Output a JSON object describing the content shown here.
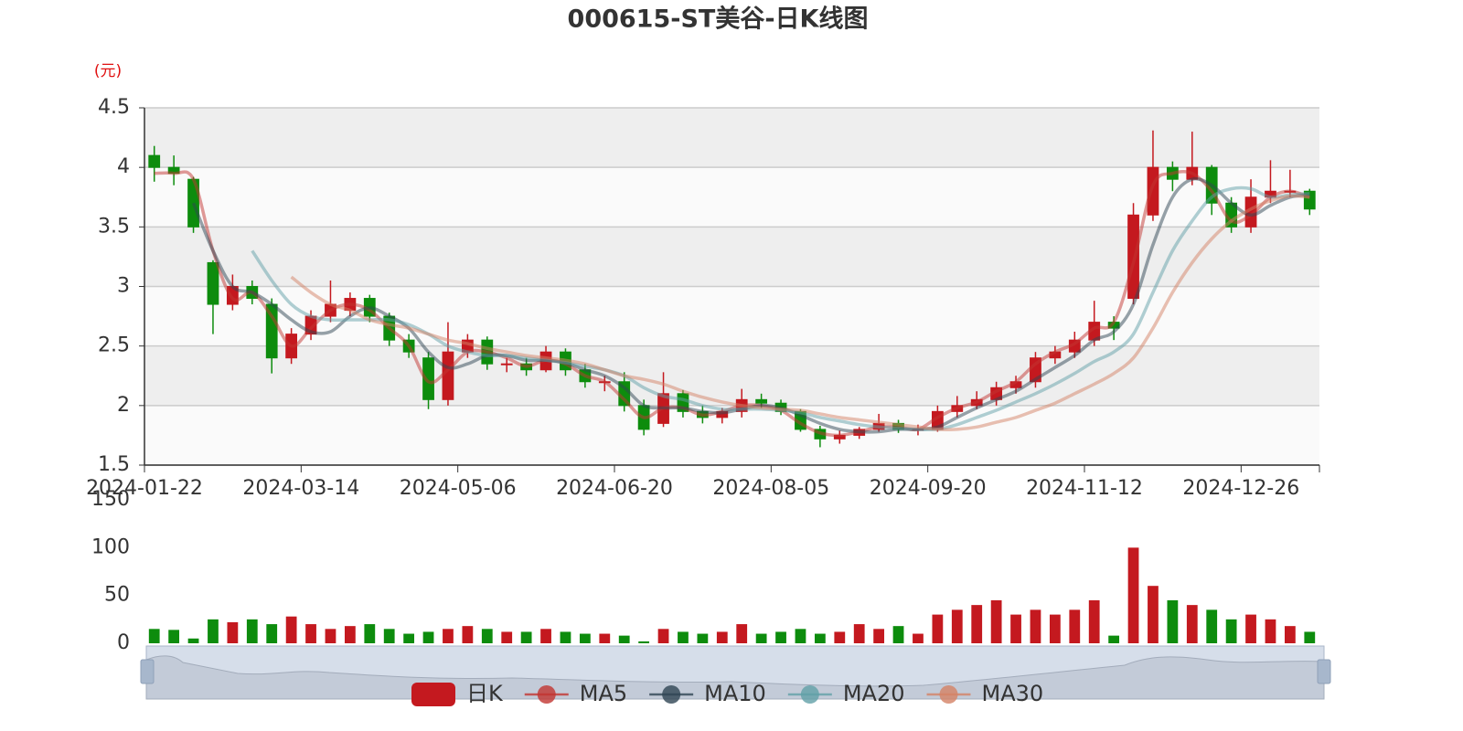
{
  "chart_data": {
    "type": "candlestick",
    "title": "000615-ST美谷-日K线图",
    "y_label": "(元)",
    "categories": [
      "2024-01-22",
      null,
      null,
      null,
      null,
      null,
      null,
      null,
      "2024-03-14",
      null,
      null,
      null,
      null,
      null,
      null,
      null,
      "2024-05-06",
      null,
      null,
      null,
      null,
      null,
      null,
      null,
      "2024-06-20",
      null,
      null,
      null,
      null,
      null,
      null,
      null,
      "2024-08-05",
      null,
      null,
      null,
      null,
      null,
      null,
      null,
      "2024-09-20",
      null,
      null,
      null,
      null,
      null,
      null,
      null,
      "2024-11-12",
      null,
      null,
      null,
      null,
      null,
      null,
      null,
      "2024-12-26",
      null,
      null,
      null
    ],
    "candles": {
      "name": "日K",
      "up_color": "#c4191f",
      "down_color": "#0d8c0d",
      "open": [
        4.1,
        4.0,
        3.9,
        3.2,
        2.85,
        3.0,
        2.85,
        2.4,
        2.6,
        2.75,
        2.8,
        2.9,
        2.75,
        2.55,
        2.4,
        2.05,
        2.45,
        2.55,
        2.35,
        2.35,
        2.3,
        2.45,
        2.3,
        2.2,
        2.2,
        2.0,
        1.85,
        2.1,
        1.95,
        1.9,
        1.95,
        2.05,
        2.02,
        1.95,
        1.8,
        1.72,
        1.75,
        1.8,
        1.85,
        1.8,
        1.8,
        1.95,
        2.0,
        2.05,
        2.15,
        2.2,
        2.4,
        2.45,
        2.55,
        2.7,
        2.9,
        3.6,
        4.0,
        3.9,
        4.0,
        3.7,
        3.5,
        3.75,
        3.8,
        3.8
      ],
      "close": [
        4.0,
        3.95,
        3.5,
        2.85,
        3.0,
        2.9,
        2.4,
        2.6,
        2.75,
        2.85,
        2.9,
        2.75,
        2.55,
        2.45,
        2.05,
        2.45,
        2.55,
        2.35,
        2.35,
        2.3,
        2.45,
        2.3,
        2.2,
        2.2,
        2.0,
        1.8,
        2.1,
        1.95,
        1.9,
        1.95,
        2.05,
        2.02,
        1.95,
        1.8,
        1.72,
        1.75,
        1.8,
        1.85,
        1.8,
        1.8,
        1.95,
        2.0,
        2.05,
        2.15,
        2.2,
        2.4,
        2.45,
        2.55,
        2.7,
        2.65,
        3.6,
        4.0,
        3.9,
        4.0,
        3.7,
        3.5,
        3.75,
        3.8,
        3.8,
        3.65
      ],
      "low": [
        3.88,
        3.85,
        3.45,
        2.6,
        2.8,
        2.85,
        2.27,
        2.35,
        2.55,
        2.7,
        2.75,
        2.7,
        2.5,
        2.4,
        1.97,
        2.0,
        2.4,
        2.3,
        2.28,
        2.25,
        2.28,
        2.25,
        2.15,
        2.12,
        1.95,
        1.75,
        1.82,
        1.9,
        1.85,
        1.85,
        1.9,
        1.98,
        1.92,
        1.78,
        1.65,
        1.68,
        1.72,
        1.78,
        1.77,
        1.75,
        1.78,
        1.9,
        1.97,
        2.0,
        2.1,
        2.15,
        2.35,
        2.4,
        2.5,
        2.55,
        2.85,
        3.55,
        3.8,
        3.85,
        3.6,
        3.45,
        3.45,
        3.7,
        3.75,
        3.6
      ],
      "high": [
        4.18,
        4.1,
        3.92,
        3.22,
        3.1,
        3.05,
        2.9,
        2.65,
        2.8,
        3.05,
        2.95,
        2.93,
        2.78,
        2.6,
        2.45,
        2.7,
        2.6,
        2.58,
        2.4,
        2.4,
        2.5,
        2.48,
        2.35,
        2.25,
        2.28,
        2.05,
        2.28,
        2.13,
        2.0,
        1.98,
        2.14,
        2.1,
        2.05,
        1.97,
        1.83,
        1.79,
        1.82,
        1.93,
        1.88,
        1.84,
        2.0,
        2.08,
        2.12,
        2.2,
        2.25,
        2.45,
        2.5,
        2.62,
        2.88,
        2.75,
        3.7,
        4.31,
        4.05,
        4.3,
        4.02,
        3.75,
        3.9,
        4.06,
        3.98,
        3.82
      ]
    },
    "series": [
      {
        "name": "MA5",
        "color": "#c23531",
        "values": [
          3.95,
          3.95,
          3.9,
          3.3,
          2.9,
          2.95,
          2.75,
          2.5,
          2.65,
          2.8,
          2.85,
          2.8,
          2.65,
          2.5,
          2.2,
          2.3,
          2.45,
          2.45,
          2.4,
          2.33,
          2.38,
          2.35,
          2.25,
          2.2,
          2.05,
          1.9,
          1.98,
          1.98,
          1.92,
          1.95,
          2.0,
          2.0,
          1.96,
          1.85,
          1.77,
          1.75,
          1.78,
          1.82,
          1.82,
          1.8,
          1.9,
          1.98,
          2.03,
          2.12,
          2.2,
          2.35,
          2.45,
          2.52,
          2.65,
          2.7,
          3.2,
          3.85,
          3.95,
          3.95,
          3.8,
          3.55,
          3.6,
          3.75,
          3.8,
          3.75
        ]
      },
      {
        "name": "MA10",
        "color": "#2f4554",
        "values": [
          null,
          null,
          3.7,
          3.3,
          3.0,
          2.95,
          2.85,
          2.72,
          2.62,
          2.62,
          2.75,
          2.82,
          2.75,
          2.65,
          2.45,
          2.32,
          2.35,
          2.42,
          2.42,
          2.38,
          2.38,
          2.36,
          2.3,
          2.25,
          2.15,
          2.0,
          1.98,
          1.98,
          1.95,
          1.94,
          1.97,
          2.0,
          1.98,
          1.92,
          1.85,
          1.8,
          1.78,
          1.78,
          1.8,
          1.8,
          1.82,
          1.9,
          1.98,
          2.05,
          2.12,
          2.22,
          2.32,
          2.42,
          2.55,
          2.62,
          2.85,
          3.35,
          3.75,
          3.9,
          3.85,
          3.7,
          3.6,
          3.68,
          3.75,
          3.77
        ]
      },
      {
        "name": "MA20",
        "color": "#61a0a8",
        "values": [
          null,
          null,
          null,
          null,
          null,
          3.3,
          3.05,
          2.85,
          2.75,
          2.72,
          2.72,
          2.72,
          2.72,
          2.68,
          2.6,
          2.5,
          2.45,
          2.42,
          2.42,
          2.4,
          2.38,
          2.36,
          2.33,
          2.3,
          2.25,
          2.15,
          2.08,
          2.05,
          2.0,
          1.97,
          1.97,
          1.97,
          1.96,
          1.94,
          1.9,
          1.87,
          1.84,
          1.82,
          1.81,
          1.8,
          1.8,
          1.84,
          1.9,
          1.96,
          2.03,
          2.1,
          2.18,
          2.27,
          2.37,
          2.45,
          2.6,
          2.95,
          3.3,
          3.55,
          3.75,
          3.82,
          3.82,
          3.75,
          3.77,
          3.78
        ]
      },
      {
        "name": "MA30",
        "color": "#d48265",
        "values": [
          null,
          null,
          null,
          null,
          null,
          null,
          null,
          3.08,
          2.95,
          2.85,
          2.8,
          2.72,
          2.68,
          2.65,
          2.6,
          2.55,
          2.52,
          2.48,
          2.45,
          2.42,
          2.4,
          2.38,
          2.35,
          2.3,
          2.25,
          2.22,
          2.18,
          2.12,
          2.07,
          2.03,
          2.0,
          1.98,
          1.97,
          1.96,
          1.93,
          1.9,
          1.88,
          1.86,
          1.84,
          1.82,
          1.8,
          1.8,
          1.82,
          1.86,
          1.9,
          1.96,
          2.02,
          2.1,
          2.18,
          2.27,
          2.4,
          2.65,
          2.95,
          3.2,
          3.4,
          3.55,
          3.65,
          3.72,
          3.76,
          3.75
        ]
      }
    ],
    "ylim": [
      1.5,
      4.5
    ],
    "yticks": [
      1.5,
      2,
      2.5,
      3,
      3.5,
      4,
      4.5
    ],
    "split_area": true,
    "volume": {
      "values": [
        15,
        14,
        5,
        25,
        22,
        25,
        20,
        28,
        20,
        15,
        18,
        20,
        15,
        10,
        12,
        15,
        18,
        15,
        12,
        12,
        15,
        12,
        10,
        10,
        8,
        2,
        15,
        12,
        10,
        12,
        20,
        10,
        12,
        15,
        10,
        12,
        20,
        15,
        18,
        10,
        30,
        35,
        40,
        45,
        30,
        35,
        30,
        35,
        45,
        8,
        100,
        60,
        45,
        40,
        35,
        25,
        30,
        25,
        18,
        12
      ],
      "ylim": [
        0,
        150
      ],
      "yticks": [
        0,
        50,
        100,
        150
      ]
    },
    "legend": "bottom"
  }
}
